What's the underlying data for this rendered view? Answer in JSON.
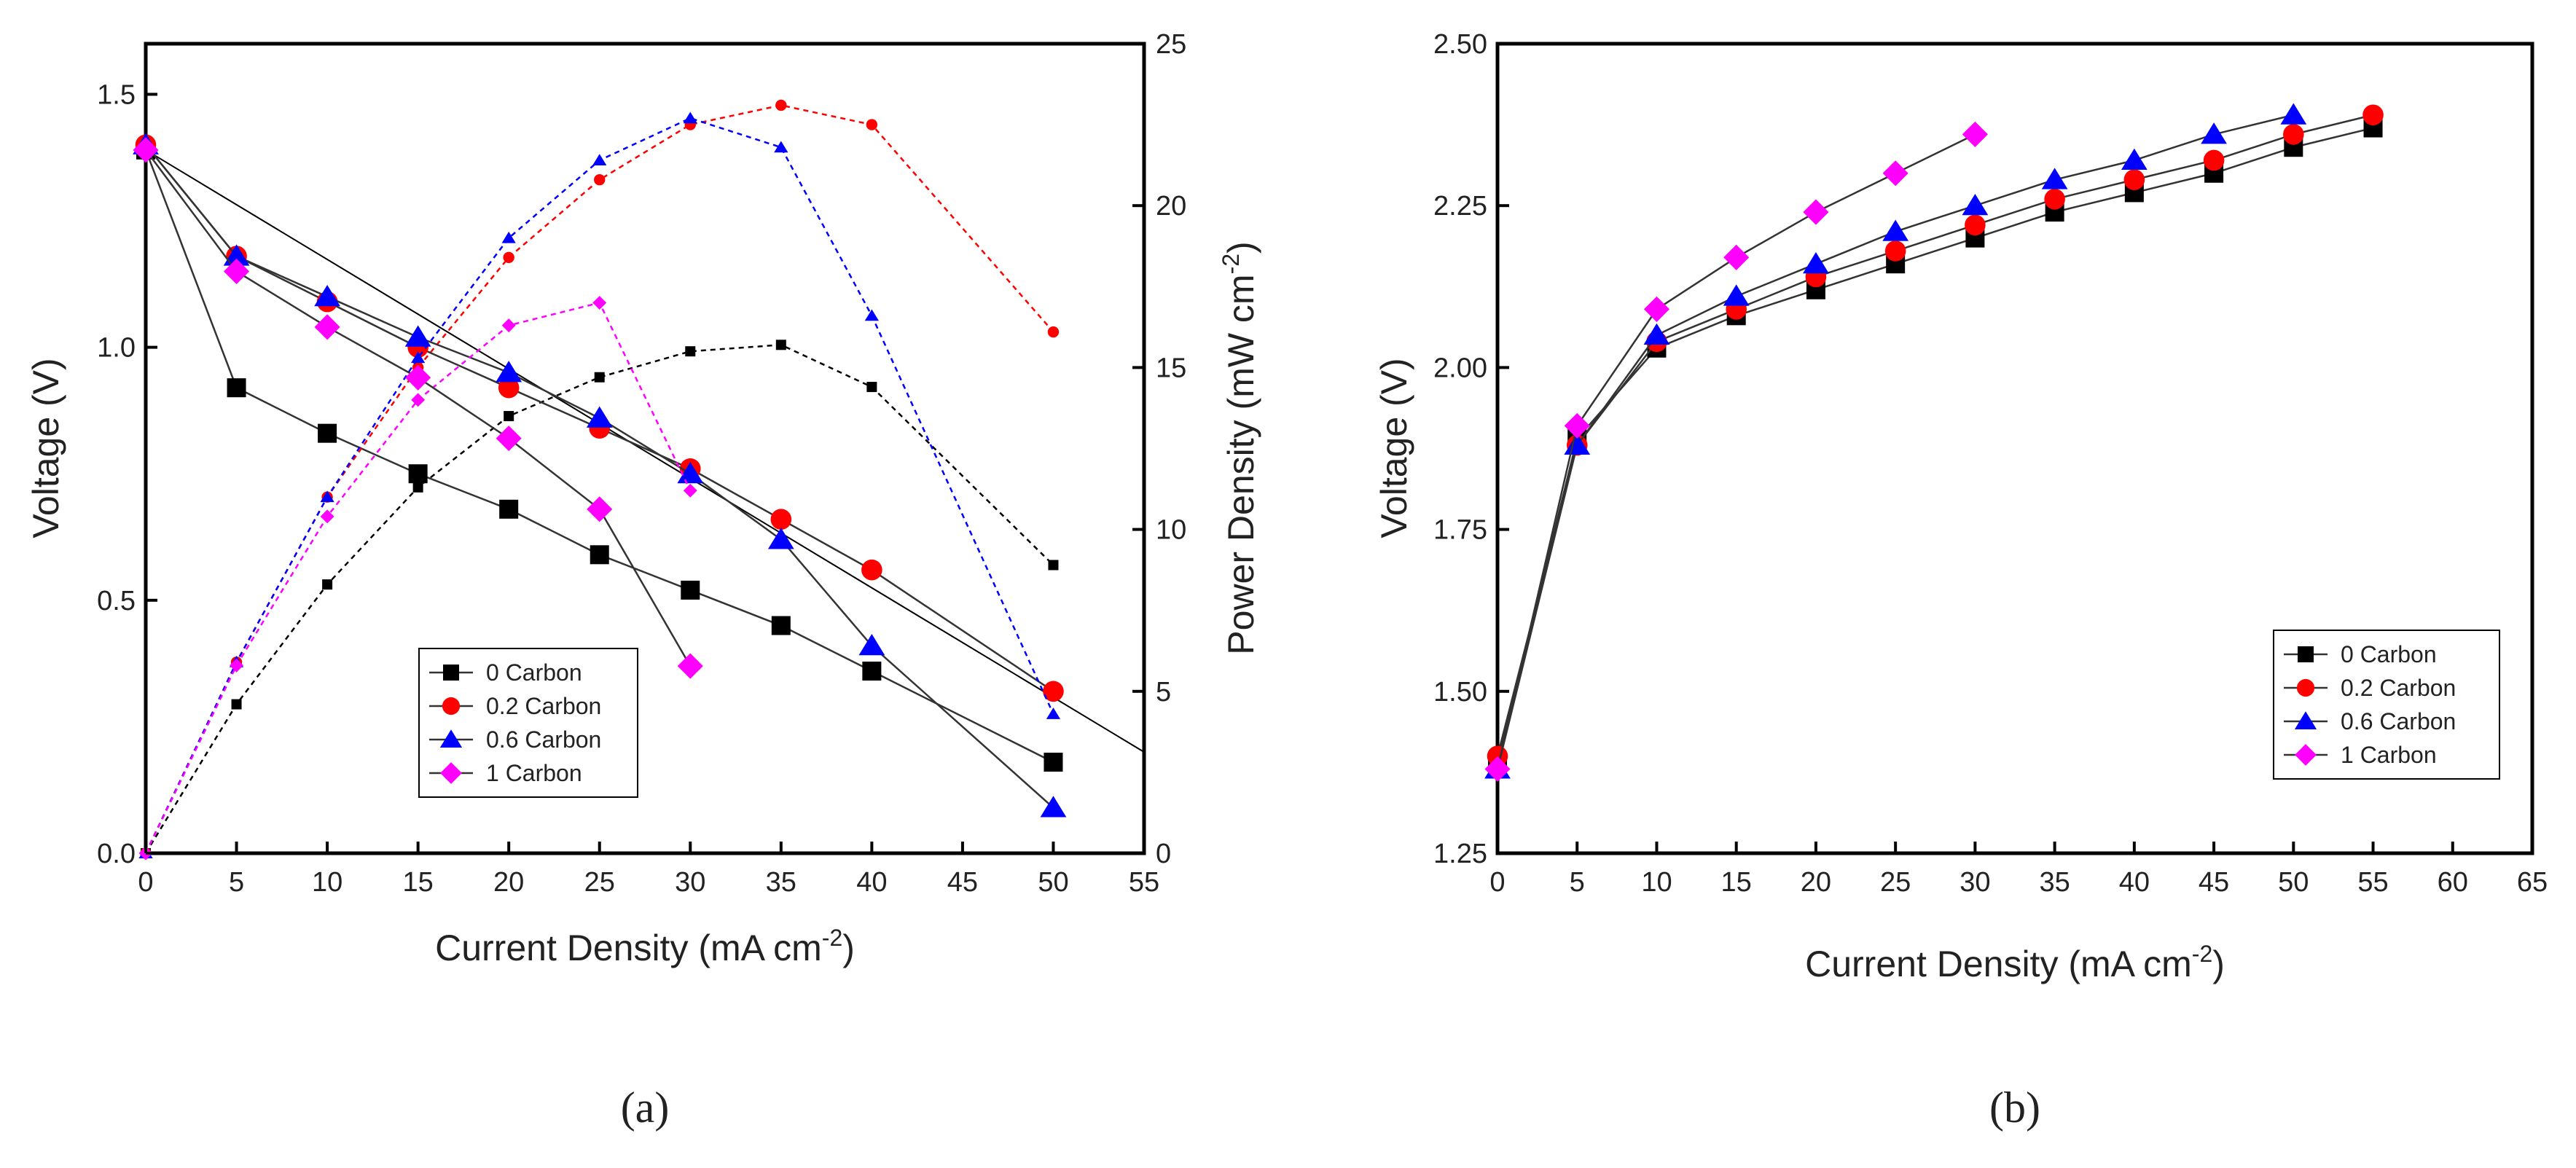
{
  "chart_data": [
    {
      "type": "line",
      "panel": "(a)",
      "xlabel": "Current Density (mA cm",
      "xlabel_sup": "-2",
      "xlabel_end": ")",
      "ylabel": "Voltage (V)",
      "y2label": "Power Density (mW cm",
      "y2label_sup": "-2",
      "y2label_end": ")",
      "xlim": [
        0,
        55
      ],
      "ylim": [
        0,
        1.6
      ],
      "y2lim": [
        0,
        25
      ],
      "x_ticks": [
        "0",
        "5",
        "10",
        "15",
        "20",
        "25",
        "30",
        "35",
        "40",
        "45",
        "50",
        "55"
      ],
      "y_ticks": [
        "0.0",
        "0.5",
        "1.0",
        "1.5"
      ],
      "y2_ticks": [
        "0",
        "5",
        "10",
        "15",
        "20",
        "25"
      ],
      "legend": [
        "0 Carbon",
        "0.2 Carbon",
        "0.6 Carbon",
        "1 Carbon"
      ],
      "legend_position": "lower-middle",
      "series": [
        {
          "name": "0 Carbon",
          "marker": "square",
          "color": "#000000",
          "voltage": [
            [
              0,
              1.39
            ],
            [
              5,
              0.92
            ],
            [
              10,
              0.83
            ],
            [
              15,
              0.75
            ],
            [
              20,
              0.68
            ],
            [
              25,
              0.59
            ],
            [
              30,
              0.52
            ],
            [
              35,
              0.45
            ],
            [
              40,
              0.36
            ],
            [
              50,
              0.18
            ]
          ],
          "power": [
            [
              0,
              0
            ],
            [
              5,
              4.6
            ],
            [
              10,
              8.3
            ],
            [
              15,
              11.3
            ],
            [
              20,
              13.5
            ],
            [
              25,
              14.7
            ],
            [
              30,
              15.5
            ],
            [
              35,
              15.7
            ],
            [
              40,
              14.4
            ],
            [
              50,
              8.9
            ]
          ]
        },
        {
          "name": "0.2 Carbon",
          "marker": "circle",
          "color": "#ff0000",
          "voltage": [
            [
              0,
              1.4
            ],
            [
              5,
              1.18
            ],
            [
              10,
              1.09
            ],
            [
              15,
              1.0
            ],
            [
              20,
              0.92
            ],
            [
              25,
              0.84
            ],
            [
              30,
              0.76
            ],
            [
              35,
              0.66
            ],
            [
              40,
              0.56
            ],
            [
              50,
              0.32
            ]
          ],
          "power": [
            [
              0,
              0
            ],
            [
              5,
              5.9
            ],
            [
              10,
              11.0
            ],
            [
              15,
              15.0
            ],
            [
              20,
              18.4
            ],
            [
              25,
              20.8
            ],
            [
              30,
              22.5
            ],
            [
              35,
              23.1
            ],
            [
              40,
              22.5
            ],
            [
              50,
              16.1
            ]
          ]
        },
        {
          "name": "0.6 Carbon",
          "marker": "triangle",
          "color": "#0000ff",
          "voltage": [
            [
              0,
              1.4
            ],
            [
              5,
              1.18
            ],
            [
              10,
              1.1
            ],
            [
              15,
              1.02
            ],
            [
              20,
              0.95
            ],
            [
              25,
              0.86
            ],
            [
              30,
              0.75
            ],
            [
              35,
              0.62
            ],
            [
              40,
              0.41
            ],
            [
              50,
              0.09
            ]
          ],
          "power": [
            [
              0,
              0
            ],
            [
              5,
              5.9
            ],
            [
              10,
              11.0
            ],
            [
              15,
              15.3
            ],
            [
              20,
              19.0
            ],
            [
              25,
              21.4
            ],
            [
              30,
              22.7
            ],
            [
              35,
              21.8
            ],
            [
              40,
              16.6
            ],
            [
              50,
              4.3
            ]
          ]
        },
        {
          "name": "1 Carbon",
          "marker": "diamond",
          "color": "#ff00ff",
          "voltage": [
            [
              0,
              1.39
            ],
            [
              5,
              1.15
            ],
            [
              10,
              1.04
            ],
            [
              15,
              0.94
            ],
            [
              20,
              0.82
            ],
            [
              25,
              0.68
            ],
            [
              30,
              0.37
            ]
          ],
          "power": [
            [
              0,
              0
            ],
            [
              5,
              5.8
            ],
            [
              10,
              10.4
            ],
            [
              15,
              14.0
            ],
            [
              20,
              16.3
            ],
            [
              25,
              17.0
            ],
            [
              30,
              11.2
            ]
          ]
        }
      ],
      "other_lines": [
        {
          "name": "unlabeled line",
          "color": "#000000",
          "points": [
            [
              0,
              1.39
            ],
            [
              55,
              0.2
            ]
          ]
        }
      ]
    },
    {
      "type": "line",
      "panel": "(b)",
      "xlabel": "Current Density (mA cm",
      "xlabel_sup": "-2",
      "xlabel_end": ")",
      "ylabel": "Voltage (V)",
      "xlim": [
        0,
        65
      ],
      "ylim": [
        1.25,
        2.5
      ],
      "x_ticks": [
        "0",
        "5",
        "10",
        "15",
        "20",
        "25",
        "30",
        "35",
        "40",
        "45",
        "50",
        "55",
        "60",
        "65"
      ],
      "y_ticks": [
        "1.25",
        "1.50",
        "1.75",
        "2.00",
        "2.25",
        "2.50"
      ],
      "legend": [
        "0 Carbon",
        "0.2 Carbon",
        "0.6 Carbon",
        "1 Carbon"
      ],
      "legend_position": "lower-right",
      "series": [
        {
          "name": "0 Carbon",
          "marker": "square",
          "color": "#000000",
          "voltage": [
            [
              0,
              1.39
            ],
            [
              5,
              1.89
            ],
            [
              10,
              2.03
            ],
            [
              15,
              2.08
            ],
            [
              20,
              2.12
            ],
            [
              25,
              2.16
            ],
            [
              30,
              2.2
            ],
            [
              35,
              2.24
            ],
            [
              40,
              2.27
            ],
            [
              45,
              2.3
            ],
            [
              50,
              2.34
            ],
            [
              55,
              2.37
            ]
          ]
        },
        {
          "name": "0.2 Carbon",
          "marker": "circle",
          "color": "#ff0000",
          "voltage": [
            [
              0,
              1.4
            ],
            [
              5,
              1.88
            ],
            [
              10,
              2.04
            ],
            [
              15,
              2.09
            ],
            [
              20,
              2.14
            ],
            [
              25,
              2.18
            ],
            [
              30,
              2.22
            ],
            [
              35,
              2.26
            ],
            [
              40,
              2.29
            ],
            [
              45,
              2.32
            ],
            [
              50,
              2.36
            ],
            [
              55,
              2.39
            ]
          ]
        },
        {
          "name": "0.6 Carbon",
          "marker": "triangle",
          "color": "#0000ff",
          "voltage": [
            [
              0,
              1.38
            ],
            [
              5,
              1.88
            ],
            [
              10,
              2.05
            ],
            [
              15,
              2.11
            ],
            [
              20,
              2.16
            ],
            [
              25,
              2.21
            ],
            [
              30,
              2.25
            ],
            [
              35,
              2.29
            ],
            [
              40,
              2.32
            ],
            [
              45,
              2.36
            ],
            [
              50,
              2.39
            ]
          ]
        },
        {
          "name": "1 Carbon",
          "marker": "diamond",
          "color": "#ff00ff",
          "voltage": [
            [
              0,
              1.38
            ],
            [
              5,
              1.91
            ],
            [
              10,
              2.09
            ],
            [
              15,
              2.17
            ],
            [
              20,
              2.24
            ],
            [
              25,
              2.3
            ],
            [
              30,
              2.36
            ]
          ]
        }
      ]
    }
  ]
}
